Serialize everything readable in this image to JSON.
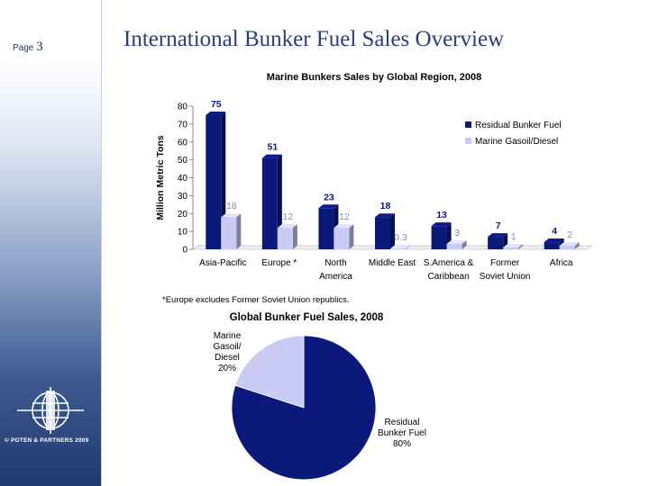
{
  "slide": {
    "page_label": "Page",
    "page_number": "3",
    "title": "International Bunker Fuel Sales Overview",
    "copyright": "©  POTEN & PARTNERS 2009",
    "footnote": "*Europe excludes Former Soviet Union republics.",
    "logo_icon": "poten-partners-globe-logo-icon"
  },
  "colors": {
    "residual": "#0b1a7a",
    "marine": "#c9cbf4",
    "title": "#283f7a"
  },
  "chart_data": [
    {
      "type": "bar",
      "title": "Marine Bunkers Sales by Global Region, 2008",
      "ylabel": "Million Metric Tons",
      "xlabel": "",
      "ylim": [
        0,
        80
      ],
      "yticks": [
        0,
        10,
        20,
        30,
        40,
        50,
        60,
        70,
        80
      ],
      "categories": [
        [
          "Asia-Pacific"
        ],
        [
          "Europe *"
        ],
        [
          "North",
          "America"
        ],
        [
          "Middle East"
        ],
        [
          "S.America &",
          "Caribbean"
        ],
        [
          "Former",
          "Soviet Union"
        ],
        [
          "Africa"
        ]
      ],
      "series": [
        {
          "name": "Residual Bunker Fuel",
          "values": [
            75,
            51,
            23,
            18,
            13,
            7,
            4
          ],
          "labels": [
            "75",
            "51",
            "23",
            "18",
            "13",
            "7",
            "4"
          ]
        },
        {
          "name": "Marine Gasoil/Diesel",
          "values": [
            18,
            12,
            12,
            0.3,
            3,
            1,
            2
          ],
          "labels": [
            "18",
            "12",
            "12",
            "0.3",
            "3",
            "1",
            "2"
          ]
        }
      ],
      "legend": "top-right",
      "grid": false,
      "style": "3d"
    },
    {
      "type": "pie",
      "title": "Global Bunker Fuel Sales, 2008",
      "slices": [
        {
          "name": [
            "Residual",
            "Bunker Fuel"
          ],
          "value": 80,
          "label": "80%"
        },
        {
          "name": [
            "Marine",
            "Gasoil/",
            "Diesel"
          ],
          "value": 20,
          "label": "20%"
        }
      ]
    }
  ]
}
